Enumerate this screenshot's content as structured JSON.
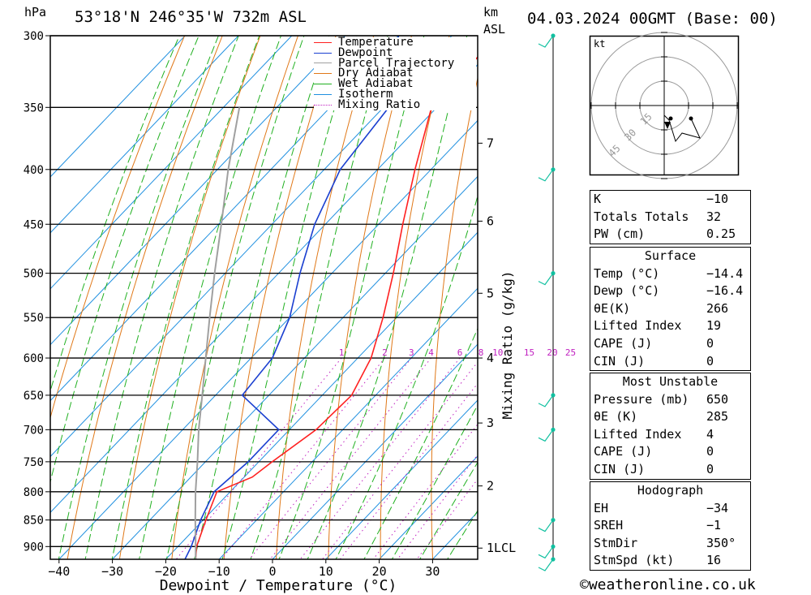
{
  "header": {
    "pressure_unit": "hPa",
    "location": "53°18'N  246°35'W  732m  ASL",
    "height_unit_km": "km",
    "height_unit_asl": "ASL",
    "datetime": "04.03.2024  00GMT  (Base: 00)"
  },
  "legend": {
    "items": [
      {
        "label": "Temperature",
        "color": "#ff2020",
        "style": "solid"
      },
      {
        "label": "Dewpoint",
        "color": "#1a3fd0",
        "style": "solid"
      },
      {
        "label": "Parcel Trajectory",
        "color": "#a0a0a0",
        "style": "solid"
      },
      {
        "label": "Dry Adiabat",
        "color": "#e07818",
        "style": "solid"
      },
      {
        "label": "Wet Adiabat",
        "color": "#20b020",
        "style": "solid"
      },
      {
        "label": "Isotherm",
        "color": "#2090e0",
        "style": "solid"
      },
      {
        "label": "Mixing Ratio",
        "color": "#c020c0",
        "style": "dotted"
      }
    ]
  },
  "chart_data": {
    "type": "line",
    "subtype": "skew-T log-P sounding",
    "title": "53°18'N  246°35'W  732m  ASL",
    "xlabel": "Dewpoint / Temperature (°C)",
    "ylabel": "hPa",
    "right_axis_label": "Mixing Ratio (g/kg)",
    "x_ticks": [
      -40,
      -30,
      -20,
      -10,
      0,
      10,
      20,
      30
    ],
    "x_tick_labels": [
      "−40",
      "−30",
      "−20",
      "−10",
      "0",
      "10",
      "20",
      "30"
    ],
    "pressure_ticks": [
      300,
      350,
      400,
      450,
      500,
      550,
      600,
      650,
      700,
      750,
      800,
      850,
      900
    ],
    "pressure_range": [
      300,
      925
    ],
    "km_ticks": [
      {
        "label": "7",
        "p": 378
      },
      {
        "label": "6",
        "p": 447
      },
      {
        "label": "5",
        "p": 522
      },
      {
        "label": "4",
        "p": 600
      },
      {
        "label": "3",
        "p": 690
      },
      {
        "label": "2",
        "p": 790
      },
      {
        "label": "1LCL",
        "p": 903
      }
    ],
    "mixing_ratio_labels": [
      "1",
      "2",
      "3",
      "4",
      "6",
      "8",
      "10",
      "15",
      "20",
      "25"
    ],
    "mixing_ratio_values": [
      1,
      2,
      3,
      4,
      6,
      8,
      10,
      15,
      20,
      25
    ],
    "series": [
      {
        "name": "Temperature",
        "color": "#ff2020",
        "points": [
          [
            925,
            -14.4
          ],
          [
            900,
            -16.5
          ],
          [
            850,
            -19.5
          ],
          [
            800,
            -22.5
          ],
          [
            775,
            -18.5
          ],
          [
            750,
            -17.5
          ],
          [
            700,
            -15.0
          ],
          [
            650,
            -14.5
          ],
          [
            600,
            -17.5
          ],
          [
            550,
            -22.5
          ],
          [
            500,
            -28.5
          ],
          [
            450,
            -35.5
          ],
          [
            400,
            -43.0
          ],
          [
            350,
            -51.0
          ],
          [
            300,
            -51.5
          ]
        ]
      },
      {
        "name": "Dewpoint",
        "color": "#1a3fd0",
        "points": [
          [
            925,
            -16.4
          ],
          [
            900,
            -17.5
          ],
          [
            850,
            -20.5
          ],
          [
            800,
            -23.0
          ],
          [
            750,
            -22.0
          ],
          [
            700,
            -22.0
          ],
          [
            650,
            -35.0
          ],
          [
            600,
            -36.0
          ],
          [
            550,
            -40.0
          ],
          [
            500,
            -46.0
          ],
          [
            450,
            -52.0
          ],
          [
            400,
            -57.0
          ],
          [
            350,
            -59.0
          ],
          [
            300,
            -70.0
          ]
        ]
      },
      {
        "name": "Parcel Trajectory",
        "color": "#a0a0a0",
        "points": [
          [
            925,
            -14.4
          ],
          [
            903,
            -16.4
          ],
          [
            850,
            -21.5
          ],
          [
            800,
            -26.5
          ],
          [
            750,
            -31.5
          ],
          [
            700,
            -37.0
          ],
          [
            650,
            -42.5
          ],
          [
            600,
            -48.5
          ],
          [
            550,
            -55.0
          ],
          [
            500,
            -62.0
          ],
          [
            450,
            -69.5
          ],
          [
            400,
            -78.0
          ],
          [
            350,
            -87.0
          ]
        ]
      }
    ],
    "wind_barb_pressures": [
      300,
      400,
      500,
      650,
      700,
      850,
      900,
      925
    ]
  },
  "hodograph": {
    "unit_label": "kt",
    "ring_labels": [
      "15",
      "30",
      "45"
    ]
  },
  "indices": {
    "K": {
      "label": "K",
      "value": "−10"
    },
    "TT": {
      "label": "Totals Totals",
      "value": "32"
    },
    "PW": {
      "label": "PW (cm)",
      "value": "0.25"
    }
  },
  "surface": {
    "title": "Surface",
    "rows": [
      {
        "label": "Temp (°C)",
        "value": "−14.4"
      },
      {
        "label": "Dewp (°C)",
        "value": "−16.4"
      },
      {
        "label": "θE(K)",
        "value": "266"
      },
      {
        "label": "Lifted Index",
        "value": "19"
      },
      {
        "label": "CAPE (J)",
        "value": "0"
      },
      {
        "label": "CIN (J)",
        "value": "0"
      }
    ]
  },
  "most_unstable": {
    "title": "Most Unstable",
    "rows": [
      {
        "label": "Pressure (mb)",
        "value": "650"
      },
      {
        "label": "θE (K)",
        "value": "285"
      },
      {
        "label": "Lifted Index",
        "value": "4"
      },
      {
        "label": "CAPE (J)",
        "value": "0"
      },
      {
        "label": "CIN (J)",
        "value": "0"
      }
    ]
  },
  "hodograph_table": {
    "title": "Hodograph",
    "rows": [
      {
        "label": "EH",
        "value": "−34"
      },
      {
        "label": "SREH",
        "value": "−1"
      },
      {
        "label": "StmDir",
        "value": "350°"
      },
      {
        "label": "StmSpd (kt)",
        "value": "16"
      }
    ]
  },
  "footer": {
    "copyright": "©weatheronline.co.uk"
  }
}
